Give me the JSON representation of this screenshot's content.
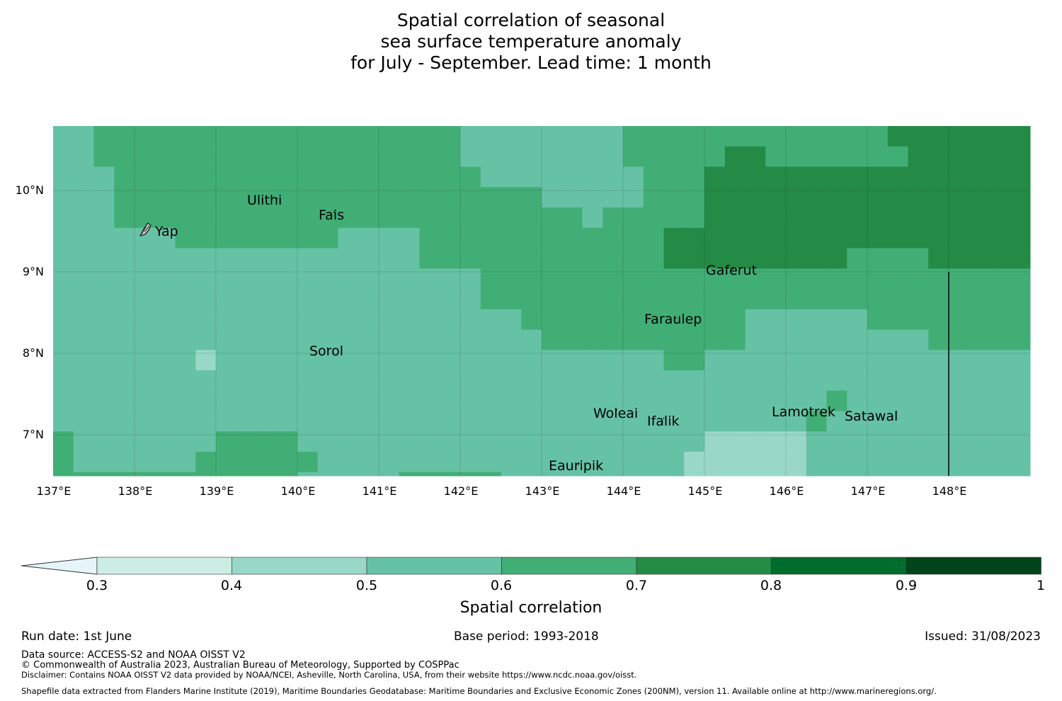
{
  "title": {
    "line1": "Spatial correlation of seasonal",
    "line2": "sea surface temperature anomaly",
    "line3": "for July - September. Lead time: 1 month"
  },
  "map": {
    "lat_labels": [
      "10°N",
      "9°N",
      "8°N",
      "7°N"
    ],
    "lon_labels": [
      "137°E",
      "138°E",
      "139°E",
      "140°E",
      "141°E",
      "142°E",
      "143°E",
      "144°E",
      "145°E",
      "146°E",
      "147°E",
      "148°E"
    ],
    "lon_range": [
      137,
      149
    ],
    "lat_range": [
      6.5,
      10.8
    ],
    "places": [
      {
        "name": "Ulithi",
        "lon": 139.75,
        "lat": 9.87
      },
      {
        "name": "Fais",
        "lon": 140.45,
        "lat": 9.7
      },
      {
        "name": "Yap",
        "lon": 138.4,
        "lat": 9.5
      },
      {
        "name": "Gaferut",
        "lon": 145.35,
        "lat": 9.0
      },
      {
        "name": "Faraulep",
        "lon": 144.65,
        "lat": 8.4
      },
      {
        "name": "Sorol",
        "lon": 140.37,
        "lat": 8.03
      },
      {
        "name": "Woleai",
        "lon": 143.92,
        "lat": 7.27
      },
      {
        "name": "Ifalik",
        "lon": 144.5,
        "lat": 7.17
      },
      {
        "name": "Lamotrek",
        "lon": 146.25,
        "lat": 7.28
      },
      {
        "name": "Satawal",
        "lon": 147.05,
        "lat": 7.23
      },
      {
        "name": "Eauripik",
        "lon": 143.45,
        "lat": 6.6
      }
    ],
    "grid": {
      "lon_start": 137.0,
      "lat_top": 10.75,
      "cell_deg": 0.25,
      "legend": "a=0.4-0.5 b=0.5-0.6 c=0.6-0.7 d=0.7-0.8",
      "rows": [
        "bbccccccccccccccccccbbbbbbbbcccccccccccccddddddddddddddddd",
        "bbccccccccccccccccccbbbbbbbbcccccddcccccccddddddddddddddddd",
        "bbbccccccccccccccccccbbbbbbbbcccddddddddddddddddddddddddddd",
        "bbbcccccccccccccccccccccbbbbbcccddddddddddddddddddddddddddc",
        "bbbcccccccccccccccccccccccbcccccddddddddddddddddddddddddccc",
        "bbbbbbccccccccbbbbccccccccccccdddddddddddddddddddddddddccc",
        "bbbbbbbbbbbbbbbbbbccccccccccccdddddddddccccddddddddcccccccc",
        "bbbbbbbbbbbbbbbbbbbbbcccccccccccccccccccccccccccccccdcccccc",
        "bbbbbbbbbbbbbbbbbbbbbccccccccccccccccccccccccccccccccccccc",
        "bbbbbbbbbbbbbbbbbbbbbbbcccccccccccbbbbbbcccccccccccccccddccc",
        "bbbbbbbbbbbbbbbbbbbbbbbbccccccccccbbbbbbbbbccccccccccccccccc",
        "bbbbbbbabbbbbbbbbbbbbbbbbbbbbbccbbbbbbbbbbbbbbbbbbbbbcccccc",
        "bbbbbbbbbbbbbbbbbbbbbbbbbbbbbbbbbbbbbbbbbbbbbbbbbbbbcccccccc",
        "bbbbbbbbbbbbbbbbbbbbbbbbbbbbbbbbbbbbbbcbbbbbbbbbbbbbbccccccc",
        "bbbbbbbbbbbbbbbbbbbbbbbbbbbbbbbbbbbbbcbbbbbbbbbbbbbbbcccccccc",
        "cbbbbbbbccccbbbbbbbbbbbbbbbbbbbbaaaaabbbbbbbbbbbbbbbbcccccccc",
        "cbbbbbbccccccbbbbbbbbbbbbbbbbbbaaaaaabbbbbbbbbbbbbbbbcccccccc",
        "ccccccccccccbbbbbcccccbbbbbbbbbaaaaaabbbbbbbbbbbbbbbbcccccbbbb"
      ]
    }
  },
  "colorbar": {
    "ticks": [
      "0.3",
      "0.4",
      "0.5",
      "0.6",
      "0.7",
      "0.8",
      "0.9",
      "1"
    ],
    "colors": [
      "#ccede3",
      "#99d8c9",
      "#66c2a4",
      "#41ae76",
      "#238b45",
      "#006d2c",
      "#00441b"
    ],
    "under_color": "#e5f5f9",
    "title": "Spatial correlation"
  },
  "colors": {
    "a": "#99d8c9",
    "b": "#66c2a4",
    "c": "#41ae76",
    "d": "#238b45"
  },
  "footer": {
    "run_date": "Run date: 1st June",
    "base_period": "Base period: 1993-2018",
    "issued": "Issued: 31/08/2023",
    "data_source": "Data source: ACCESS-S2 and NOAA OISST V2",
    "copyright": "© Commonwealth of Australia 2023, Australian Bureau of Meteorology, Supported by COSPPac",
    "disclaimer": "Disclaimer: Contains NOAA OISST V2 data provided by NOAA/NCEI, Asheville, North Carolina, USA, from their website https://www.ncdc.noaa.gov/oisst.",
    "shapefile": "Shapefile data extracted from Flanders Marine Institute (2019), Maritime Boundaries Geodatabase: Maritime Boundaries and Exclusive Economic Zones (200NM), version 11. Available online at http://www.marineregions.org/."
  }
}
